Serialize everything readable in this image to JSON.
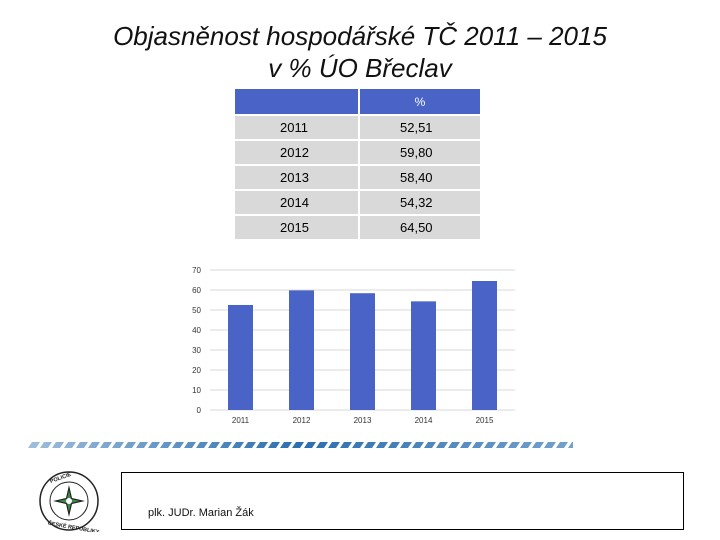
{
  "title_line1": "Objasněnost hospodářské TČ 2011 – 2015",
  "title_line2": "v % ÚO Břeclav",
  "table": {
    "header_col1": "",
    "header_col2": "%",
    "rows": [
      {
        "year": "2011",
        "value": "52,51"
      },
      {
        "year": "2012",
        "value": "59,80"
      },
      {
        "year": "2013",
        "value": "58,40"
      },
      {
        "year": "2014",
        "value": "54,32"
      },
      {
        "year": "2015",
        "value": "64,50"
      }
    ]
  },
  "chart_data": {
    "type": "bar",
    "title": "",
    "xlabel": "",
    "ylabel": "",
    "categories": [
      "2011",
      "2012",
      "2013",
      "2014",
      "2015"
    ],
    "values": [
      52.51,
      59.8,
      58.4,
      54.32,
      64.5
    ],
    "ylim": [
      0,
      70
    ],
    "yticks": [
      "0",
      "10",
      "20",
      "30",
      "40",
      "50",
      "60",
      "70"
    ],
    "grid": true,
    "legend": "none",
    "bar_color": "#4a63c7",
    "grid_color": "#d9d9d9"
  },
  "footer": {
    "author": "plk. JUDr. Marian Žák",
    "logo_text": "POLICIE ČESKÉ REPUBLIKY"
  },
  "colors": {
    "accent": "#4a63c7",
    "table_row_bg": "#d9d9d9"
  }
}
